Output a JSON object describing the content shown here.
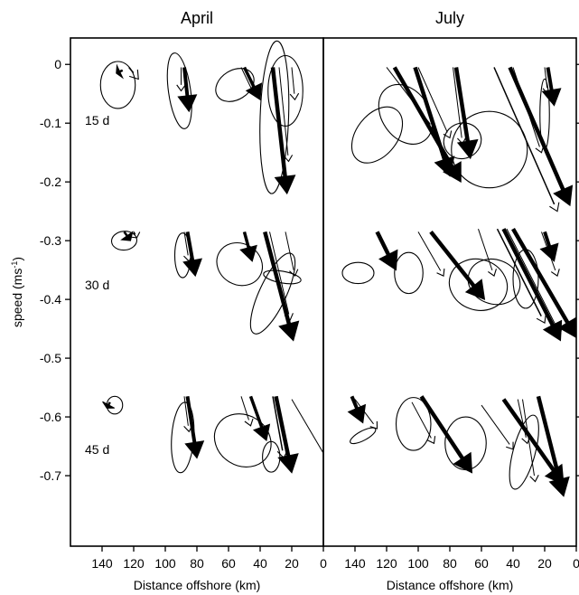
{
  "chart_data": {
    "type": "vector",
    "panels": [
      {
        "title": "April"
      },
      {
        "title": "July"
      }
    ],
    "xlabel": "Distance offshore (km)",
    "ylabel_main": "speed (ms",
    "ylabel_sup": "-1",
    "ylabel_close": ")",
    "xlim": [
      160,
      0
    ],
    "ylim": [
      -0.82,
      0.045
    ],
    "xticks": [
      140,
      120,
      100,
      80,
      60,
      40,
      20,
      0
    ],
    "yticks": [
      0,
      -0.1,
      -0.2,
      -0.3,
      -0.4,
      -0.5,
      -0.6,
      -0.7
    ],
    "row_labels": [
      {
        "label": "15 d",
        "y": -0.095
      },
      {
        "label": "30 d",
        "y": -0.375
      },
      {
        "label": "45 d",
        "y": -0.655
      }
    ],
    "arrows": [
      {
        "panel": 0,
        "x": 123,
        "y": -0.005,
        "u": -6,
        "v": -0.02,
        "w": 1.6
      },
      {
        "panel": 0,
        "x": 127,
        "y": -0.01,
        "u": 4,
        "v": -0.005,
        "w": 2.5
      },
      {
        "panel": 0,
        "x": 88,
        "y": -0.005,
        "u": -3,
        "v": -0.075,
        "w": 4
      },
      {
        "panel": 0,
        "x": 90,
        "y": -0.005,
        "u": 0,
        "v": -0.04,
        "w": 1
      },
      {
        "panel": 0,
        "x": 50,
        "y": -0.005,
        "u": -10,
        "v": -0.055,
        "w": 3.5
      },
      {
        "panel": 0,
        "x": 52,
        "y": -0.005,
        "u": -8,
        "v": -0.045,
        "w": 1
      },
      {
        "panel": 0,
        "x": 32,
        "y": -0.005,
        "u": -9,
        "v": -0.215,
        "w": 4.5
      },
      {
        "panel": 0,
        "x": 28,
        "y": -0.005,
        "u": -6,
        "v": -0.16,
        "w": 1
      },
      {
        "panel": 0,
        "x": 20,
        "y": -0.005,
        "u": -2,
        "v": -0.055,
        "w": 1
      },
      {
        "panel": 0,
        "x": 126,
        "y": -0.285,
        "u": -4,
        "v": -0.015,
        "w": 2.5
      },
      {
        "panel": 0,
        "x": 120,
        "y": -0.285,
        "u": -2,
        "v": -0.01,
        "w": 1.6
      },
      {
        "panel": 0,
        "x": 86,
        "y": -0.285,
        "u": -5,
        "v": -0.075,
        "w": 4
      },
      {
        "panel": 0,
        "x": 88,
        "y": -0.285,
        "u": -3,
        "v": -0.05,
        "w": 1
      },
      {
        "panel": 0,
        "x": 50,
        "y": -0.285,
        "u": -5,
        "v": -0.05,
        "w": 3.5
      },
      {
        "panel": 0,
        "x": 37,
        "y": -0.285,
        "u": -18,
        "v": -0.185,
        "w": 4.5
      },
      {
        "panel": 0,
        "x": 34,
        "y": -0.285,
        "u": -13,
        "v": -0.15,
        "w": 1
      },
      {
        "panel": 0,
        "x": 24,
        "y": -0.285,
        "u": -6,
        "v": -0.075,
        "w": 1
      },
      {
        "panel": 0,
        "x": 135,
        "y": -0.575,
        "u": 2,
        "v": -0.01,
        "w": 2.5
      },
      {
        "panel": 0,
        "x": 86,
        "y": -0.565,
        "u": -6,
        "v": -0.105,
        "w": 4
      },
      {
        "panel": 0,
        "x": 88,
        "y": -0.565,
        "u": -3,
        "v": -0.06,
        "w": 1
      },
      {
        "panel": 0,
        "x": 46,
        "y": -0.565,
        "u": -10,
        "v": -0.075,
        "w": 3.5
      },
      {
        "panel": 0,
        "x": 52,
        "y": -0.565,
        "u": -6,
        "v": -0.05,
        "w": 1
      },
      {
        "panel": 0,
        "x": 30,
        "y": -0.565,
        "u": -10,
        "v": -0.13,
        "w": 4.5
      },
      {
        "panel": 0,
        "x": 32,
        "y": -0.565,
        "u": -7,
        "v": -0.105,
        "w": 1.5
      },
      {
        "panel": 0,
        "x": 20,
        "y": -0.57,
        "u": -24,
        "v": -0.11,
        "w": 1
      },
      {
        "panel": 1,
        "x": 115,
        "y": -0.005,
        "u": -42,
        "v": -0.195,
        "w": 4.5
      },
      {
        "panel": 1,
        "x": 120,
        "y": -0.005,
        "u": -30,
        "v": -0.105,
        "w": 1
      },
      {
        "panel": 1,
        "x": 102,
        "y": -0.005,
        "u": -22,
        "v": -0.185,
        "w": 4.5
      },
      {
        "panel": 1,
        "x": 100,
        "y": -0.005,
        "u": -20,
        "v": -0.12,
        "w": 1
      },
      {
        "panel": 1,
        "x": 42,
        "y": -0.005,
        "u": -38,
        "v": -0.235,
        "w": 4.5
      },
      {
        "panel": 1,
        "x": 52,
        "y": -0.005,
        "u": -40,
        "v": -0.245,
        "w": 1.5
      },
      {
        "panel": 1,
        "x": 76,
        "y": -0.005,
        "u": -9,
        "v": -0.155,
        "w": 4.5
      },
      {
        "panel": 1,
        "x": 78,
        "y": -0.005,
        "u": -6,
        "v": -0.13,
        "w": 1
      },
      {
        "panel": 1,
        "x": 40,
        "y": -0.005,
        "u": -18,
        "v": -0.145,
        "w": 1
      },
      {
        "panel": 1,
        "x": 18,
        "y": -0.005,
        "u": -4,
        "v": -0.065,
        "w": 4
      },
      {
        "panel": 1,
        "x": 20,
        "y": -0.005,
        "u": -2,
        "v": -0.045,
        "w": 1
      },
      {
        "panel": 1,
        "x": 126,
        "y": -0.285,
        "u": -12,
        "v": -0.065,
        "w": 4.5
      },
      {
        "panel": 1,
        "x": 92,
        "y": -0.285,
        "u": -34,
        "v": -0.115,
        "w": 4.5
      },
      {
        "panel": 1,
        "x": 100,
        "y": -0.285,
        "u": -16,
        "v": -0.075,
        "w": 1
      },
      {
        "panel": 1,
        "x": 46,
        "y": -0.28,
        "u": -36,
        "v": -0.19,
        "w": 4.5
      },
      {
        "panel": 1,
        "x": 40,
        "y": -0.28,
        "u": -40,
        "v": -0.185,
        "w": 4.5
      },
      {
        "panel": 1,
        "x": 50,
        "y": -0.28,
        "u": -30,
        "v": -0.16,
        "w": 1.5
      },
      {
        "panel": 1,
        "x": 44,
        "y": -0.28,
        "u": -34,
        "v": -0.18,
        "w": 1
      },
      {
        "panel": 1,
        "x": 62,
        "y": -0.28,
        "u": -10,
        "v": -0.08,
        "w": 1
      },
      {
        "panel": 1,
        "x": 20,
        "y": -0.285,
        "u": -6,
        "v": -0.05,
        "w": 4
      },
      {
        "panel": 1,
        "x": 22,
        "y": -0.285,
        "u": -10,
        "v": -0.075,
        "w": 1
      },
      {
        "panel": 1,
        "x": 142,
        "y": -0.565,
        "u": -7,
        "v": -0.045,
        "w": 4
      },
      {
        "panel": 1,
        "x": 140,
        "y": -0.57,
        "u": -14,
        "v": -0.05,
        "w": 1
      },
      {
        "panel": 1,
        "x": 98,
        "y": -0.565,
        "u": -32,
        "v": -0.13,
        "w": 4.5
      },
      {
        "panel": 1,
        "x": 104,
        "y": -0.575,
        "u": -14,
        "v": -0.07,
        "w": 1
      },
      {
        "panel": 1,
        "x": 46,
        "y": -0.57,
        "u": -38,
        "v": -0.145,
        "w": 4.5
      },
      {
        "panel": 1,
        "x": 60,
        "y": -0.58,
        "u": -20,
        "v": -0.075,
        "w": 1
      },
      {
        "panel": 1,
        "x": 24,
        "y": -0.565,
        "u": -16,
        "v": -0.17,
        "w": 4.5
      },
      {
        "panel": 1,
        "x": 34,
        "y": -0.57,
        "u": -8,
        "v": -0.14,
        "w": 1
      },
      {
        "panel": 1,
        "x": 37,
        "y": -0.57,
        "u": -6,
        "v": -0.075,
        "w": 1
      }
    ],
    "ellipses": [
      {
        "panel": 0,
        "x": 130,
        "y": -0.035,
        "rx": 11,
        "ry": 0.04,
        "rot": 0
      },
      {
        "panel": 0,
        "x": 91,
        "y": -0.045,
        "rx": 7,
        "ry": 0.065,
        "rot": -8
      },
      {
        "panel": 0,
        "x": 56,
        "y": -0.035,
        "rx": 13,
        "ry": 0.025,
        "rot": -32
      },
      {
        "panel": 0,
        "x": 31,
        "y": -0.09,
        "rx": 9,
        "ry": 0.13,
        "rot": 2
      },
      {
        "panel": 0,
        "x": 24,
        "y": -0.045,
        "rx": 11,
        "ry": 0.06,
        "rot": 0
      },
      {
        "panel": 0,
        "x": 126,
        "y": -0.3,
        "rx": 8,
        "ry": 0.016,
        "rot": -5
      },
      {
        "panel": 0,
        "x": 89,
        "y": -0.325,
        "rx": 5,
        "ry": 0.038,
        "rot": 0
      },
      {
        "panel": 0,
        "x": 53,
        "y": -0.34,
        "rx": 13,
        "ry": 0.04,
        "rot": -60
      },
      {
        "panel": 0,
        "x": 32,
        "y": -0.39,
        "rx": 8.5,
        "ry": 0.075,
        "rot": 25
      },
      {
        "panel": 0,
        "x": 26,
        "y": -0.362,
        "rx": 12,
        "ry": 0.01,
        "rot": 10
      },
      {
        "panel": 0,
        "x": 132,
        "y": -0.58,
        "rx": 5,
        "ry": 0.015,
        "rot": 0
      },
      {
        "panel": 0,
        "x": 89,
        "y": -0.635,
        "rx": 7,
        "ry": 0.06,
        "rot": 4
      },
      {
        "panel": 0,
        "x": 51,
        "y": -0.64,
        "rx": 16,
        "ry": 0.05,
        "rot": -58
      },
      {
        "panel": 0,
        "x": 33,
        "y": -0.668,
        "rx": 5.5,
        "ry": 0.026,
        "rot": 0
      },
      {
        "panel": 1,
        "x": 126,
        "y": -0.12,
        "rx": 20,
        "ry": 0.035,
        "rot": -52
      },
      {
        "panel": 1,
        "x": 108,
        "y": -0.085,
        "rx": 15,
        "ry": 0.055,
        "rot": -35
      },
      {
        "panel": 1,
        "x": 72,
        "y": -0.13,
        "rx": 12,
        "ry": 0.03,
        "rot": -25
      },
      {
        "panel": 1,
        "x": 55,
        "y": -0.145,
        "rx": 24,
        "ry": 0.065,
        "rot": 0
      },
      {
        "panel": 1,
        "x": 20,
        "y": -0.085,
        "rx": 3,
        "ry": 0.06,
        "rot": 0
      },
      {
        "panel": 1,
        "x": 138,
        "y": -0.355,
        "rx": 10,
        "ry": 0.018,
        "rot": 0
      },
      {
        "panel": 1,
        "x": 106,
        "y": -0.355,
        "rx": 9,
        "ry": 0.035,
        "rot": 0
      },
      {
        "panel": 1,
        "x": 62,
        "y": -0.375,
        "rx": 16,
        "ry": 0.05,
        "rot": -72
      },
      {
        "panel": 1,
        "x": 52,
        "y": -0.37,
        "rx": 14,
        "ry": 0.045,
        "rot": -70
      },
      {
        "panel": 1,
        "x": 32,
        "y": -0.365,
        "rx": 8,
        "ry": 0.05,
        "rot": 0
      },
      {
        "panel": 1,
        "x": 135,
        "y": -0.632,
        "rx": 9,
        "ry": 0.008,
        "rot": -28
      },
      {
        "panel": 1,
        "x": 103,
        "y": -0.612,
        "rx": 11,
        "ry": 0.045,
        "rot": 0
      },
      {
        "panel": 1,
        "x": 70,
        "y": -0.645,
        "rx": 13,
        "ry": 0.045,
        "rot": 0
      },
      {
        "panel": 1,
        "x": 33,
        "y": -0.66,
        "rx": 7,
        "ry": 0.065,
        "rot": 15
      }
    ]
  }
}
